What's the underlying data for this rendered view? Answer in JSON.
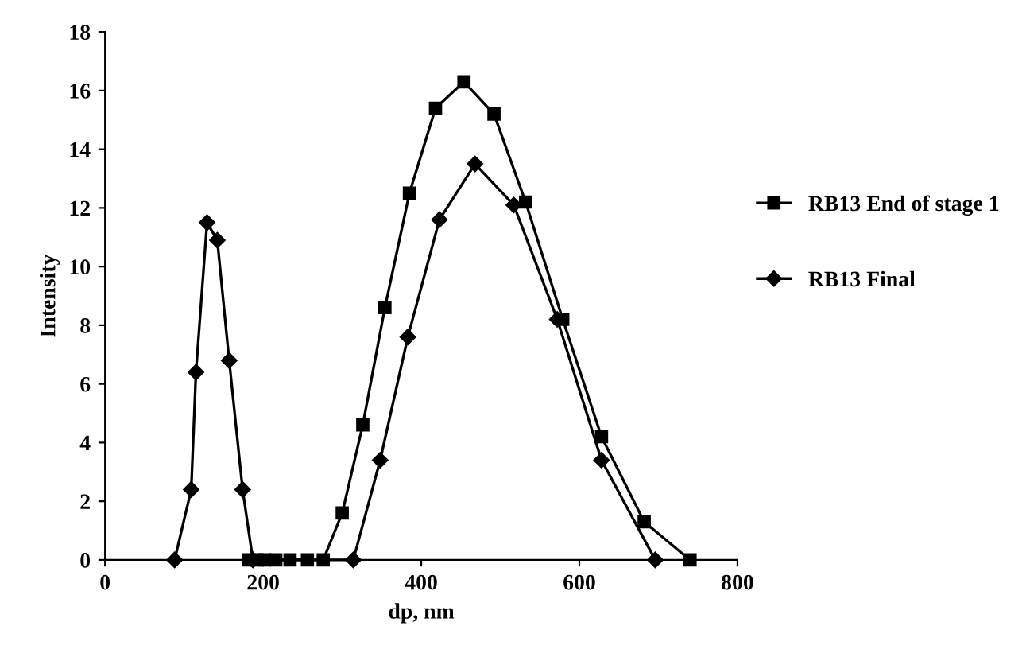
{
  "chart_data": {
    "type": "line",
    "xlabel": "dp, nm",
    "ylabel": "Intensity",
    "xlim": [
      0,
      800
    ],
    "xticks": [
      0,
      200,
      400,
      600,
      800
    ],
    "ylim": [
      0,
      18
    ],
    "yticks": [
      0,
      2,
      4,
      6,
      8,
      10,
      12,
      14,
      16,
      18
    ],
    "grid": false,
    "legend": "right",
    "series": [
      {
        "name": "RB13 End of stage 1",
        "color": "#000000",
        "marker": "square",
        "x": [
          182,
          192,
          202,
          216,
          234,
          256,
          276,
          300,
          326,
          354,
          385,
          418,
          454,
          492,
          532,
          579,
          628,
          682,
          740
        ],
        "values": [
          0,
          0,
          0,
          0,
          0,
          0,
          0,
          1.6,
          4.6,
          8.6,
          12.5,
          15.4,
          16.3,
          15.2,
          12.2,
          8.2,
          4.2,
          1.3,
          0
        ]
      },
      {
        "name": "RB13 Final",
        "color": "#000000",
        "marker": "diamond",
        "x": [
          88,
          109,
          115,
          129,
          142,
          157,
          174,
          187,
          314,
          348,
          383,
          423,
          468,
          517,
          572,
          628,
          696
        ],
        "values": [
          0,
          2.4,
          6.4,
          11.5,
          10.9,
          6.8,
          2.4,
          0,
          0,
          3.4,
          7.6,
          11.6,
          13.5,
          12.1,
          8.2,
          3.4,
          0
        ]
      }
    ]
  }
}
